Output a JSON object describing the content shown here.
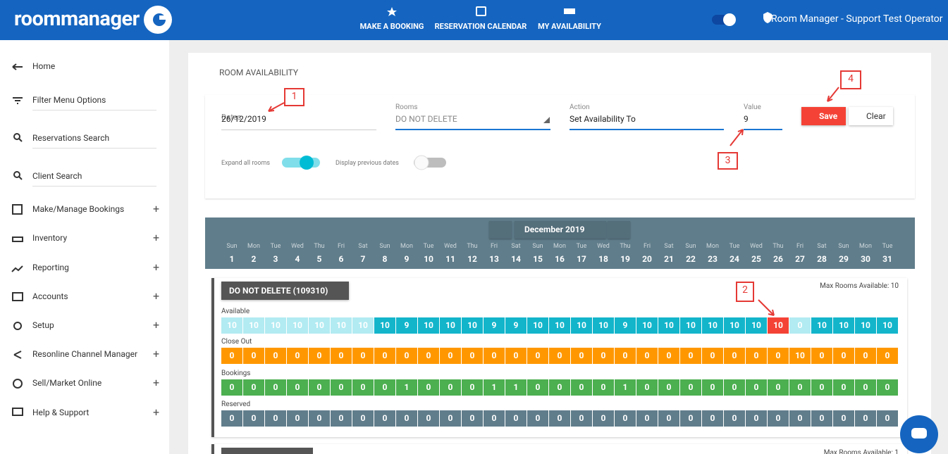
{
  "header": {
    "brand": "roommanager",
    "nav": [
      "MAKE A BOOKING",
      "RESERVATION CALENDAR",
      "MY AVAILABILITY"
    ],
    "user": "Room Manager - Support Test Operator"
  },
  "sidebar": [
    {
      "label": "Home"
    },
    {
      "label": "Filter Menu Options"
    },
    {
      "label": "Reservations Search"
    },
    {
      "label": "Client Search"
    },
    {
      "label": "Make/Manage Bookings",
      "expand": "+"
    },
    {
      "label": "Inventory",
      "expand": "+"
    },
    {
      "label": "Reporting",
      "expand": "+"
    },
    {
      "label": "Accounts",
      "expand": "+"
    },
    {
      "label": "Setup",
      "expand": "+"
    },
    {
      "label": "Resonline Channel Manager",
      "expand": "+"
    },
    {
      "label": "Sell/Market Online",
      "expand": "+"
    },
    {
      "label": "Help & Support",
      "expand": "+"
    }
  ],
  "panel": {
    "title": "ROOM AVAILABILITY",
    "fields": [
      {
        "label": "Dates",
        "value": "26/12/2019"
      },
      {
        "label": "Rooms",
        "value": "DO NOT DELETE"
      },
      {
        "label": "Action",
        "value": "Set Availability To"
      },
      {
        "label": "Value",
        "value": "9"
      }
    ],
    "buttons": [
      "Save",
      "Clear"
    ],
    "toggles": [
      {
        "label": "Expand all rooms",
        "on": true
      },
      {
        "label": "Display previous dates",
        "on": false
      }
    ]
  },
  "calendar": {
    "month": "December 2019",
    "weekdays": [
      "Sun",
      "Mon",
      "Tue",
      "Wed",
      "Thu",
      "Fri",
      "Sat",
      "Sun",
      "Mon",
      "Tue",
      "Wed",
      "Thu",
      "Fri",
      "Sat",
      "Sun",
      "Mon",
      "Tue",
      "Wed",
      "Thu",
      "Fri",
      "Sat",
      "Sun",
      "Mon",
      "Tue",
      "Wed",
      "Thu",
      "Fri",
      "Sat",
      "Sun",
      "Mon",
      "Tue"
    ],
    "days": [
      1,
      2,
      3,
      4,
      5,
      6,
      7,
      8,
      9,
      10,
      11,
      12,
      13,
      14,
      15,
      16,
      17,
      18,
      19,
      20,
      21,
      22,
      23,
      24,
      25,
      26,
      27,
      28,
      29,
      30,
      31
    ]
  },
  "rooms": [
    {
      "name": "DO NOT DELETE (109310)",
      "max": "Max Rooms Available: 10",
      "rows": [
        {
          "label": "Available",
          "color": "#13b5cb",
          "values": [
            10,
            10,
            10,
            10,
            10,
            10,
            10,
            10,
            9,
            10,
            10,
            10,
            9,
            9,
            10,
            10,
            10,
            10,
            9,
            10,
            10,
            10,
            10,
            10,
            10,
            10,
            0,
            10,
            10,
            10,
            10
          ]
        },
        {
          "label": "Close Out",
          "color": "#ff9800",
          "values": [
            0,
            0,
            0,
            0,
            0,
            0,
            0,
            0,
            0,
            0,
            0,
            0,
            0,
            0,
            0,
            0,
            0,
            0,
            0,
            0,
            0,
            0,
            0,
            0,
            0,
            0,
            10,
            0,
            0,
            0,
            0
          ]
        },
        {
          "label": "Bookings",
          "color": "#4caf50",
          "values": [
            0,
            0,
            0,
            0,
            0,
            0,
            0,
            0,
            1,
            0,
            0,
            0,
            1,
            1,
            0,
            0,
            0,
            0,
            1,
            0,
            0,
            0,
            0,
            0,
            0,
            0,
            0,
            0,
            0,
            0,
            0
          ]
        },
        {
          "label": "Reserved",
          "color": "#607d8b",
          "values": [
            0,
            0,
            0,
            0,
            0,
            0,
            0,
            0,
            0,
            0,
            0,
            0,
            0,
            0,
            0,
            0,
            0,
            0,
            0,
            0,
            0,
            0,
            0,
            0,
            0,
            0,
            0,
            0,
            0,
            0,
            0
          ]
        }
      ]
    },
    {
      "max": "Max Rooms Available: 1"
    }
  ],
  "annotations": [
    "1",
    "2",
    "3",
    "4"
  ]
}
